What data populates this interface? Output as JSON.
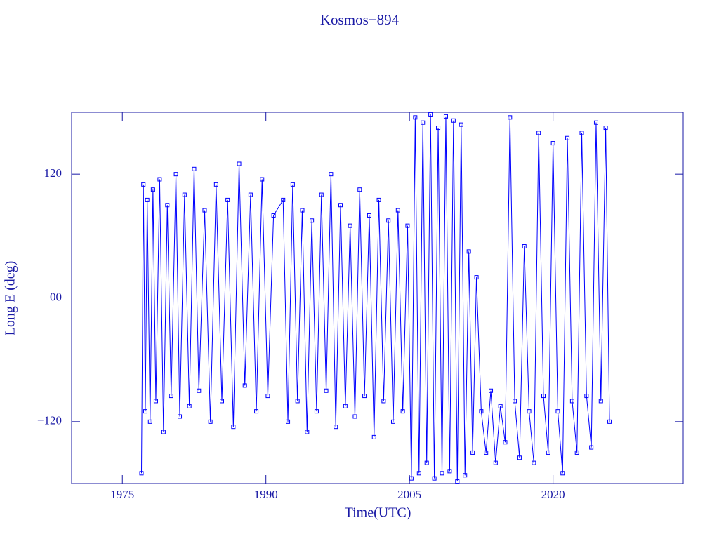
{
  "chart_data": {
    "type": "line",
    "title": "Kosmos−894",
    "xlabel": "Time(UTC)",
    "ylabel": "Long E (deg)",
    "color": "#0000ff",
    "xlim": [
      1969.7,
      2033.6
    ],
    "xticks": [
      1975,
      1990,
      2005,
      2020
    ],
    "ylim": [
      -180,
      180
    ],
    "yticks": [
      {
        "value": 120,
        "label": "120"
      },
      {
        "value": 0,
        "label": "00"
      },
      {
        "value": -120,
        "label": "−120"
      }
    ],
    "x": [
      1977.0,
      1977.2,
      1977.4,
      1977.6,
      1977.9,
      1978.2,
      1978.5,
      1978.9,
      1979.3,
      1979.7,
      1980.1,
      1980.6,
      1981.0,
      1981.5,
      1982.0,
      1982.5,
      1983.0,
      1983.6,
      1984.2,
      1984.8,
      1985.4,
      1986.0,
      1986.6,
      1987.2,
      1987.8,
      1988.4,
      1989.0,
      1989.6,
      1990.2,
      1990.8,
      1991.8,
      1992.3,
      1992.8,
      1993.3,
      1993.8,
      1994.3,
      1994.8,
      1995.3,
      1995.8,
      1996.3,
      1996.8,
      1997.3,
      1997.8,
      1998.3,
      1998.8,
      1999.3,
      1999.8,
      2000.3,
      2000.8,
      2001.3,
      2001.8,
      2002.3,
      2002.8,
      2003.3,
      2003.8,
      2004.3,
      2004.8,
      2005.2,
      2005.6,
      2006.0,
      2006.4,
      2006.8,
      2007.2,
      2007.6,
      2008.0,
      2008.4,
      2008.8,
      2009.2,
      2009.6,
      2010.0,
      2010.4,
      2010.8,
      2011.2,
      2011.6,
      2012.0,
      2012.5,
      2013.0,
      2013.5,
      2014.0,
      2014.5,
      2015.0,
      2015.5,
      2016.0,
      2016.5,
      2017.0,
      2017.5,
      2018.0,
      2018.5,
      2019.0,
      2019.5,
      2020.0,
      2020.5,
      2021.0,
      2021.5,
      2022.0,
      2022.5,
      2023.0,
      2023.5,
      2024.0,
      2024.5,
      2025.0,
      2025.5,
      2025.9
    ],
    "values": [
      -170,
      110,
      -110,
      95,
      -120,
      105,
      -100,
      115,
      -130,
      90,
      -95,
      120,
      -115,
      100,
      -105,
      125,
      -90,
      85,
      -120,
      110,
      -100,
      95,
      -125,
      130,
      -85,
      100,
      -110,
      115,
      -95,
      80,
      95,
      -120,
      110,
      -100,
      85,
      -130,
      75,
      -110,
      100,
      -90,
      120,
      -125,
      90,
      -105,
      70,
      -115,
      105,
      -95,
      80,
      -135,
      95,
      -100,
      75,
      -120,
      85,
      -110,
      70,
      -175,
      175,
      -170,
      170,
      -160,
      178,
      -175,
      165,
      -170,
      176,
      -168,
      172,
      -178,
      168,
      -172,
      45,
      -150,
      20,
      -110,
      -150,
      -90,
      -160,
      -105,
      -140,
      175,
      -100,
      -155,
      50,
      -110,
      -160,
      160,
      -95,
      -150,
      150,
      -110,
      -170,
      155,
      -100,
      -150,
      160,
      -95,
      -145,
      170,
      -100,
      165,
      -120
    ]
  }
}
